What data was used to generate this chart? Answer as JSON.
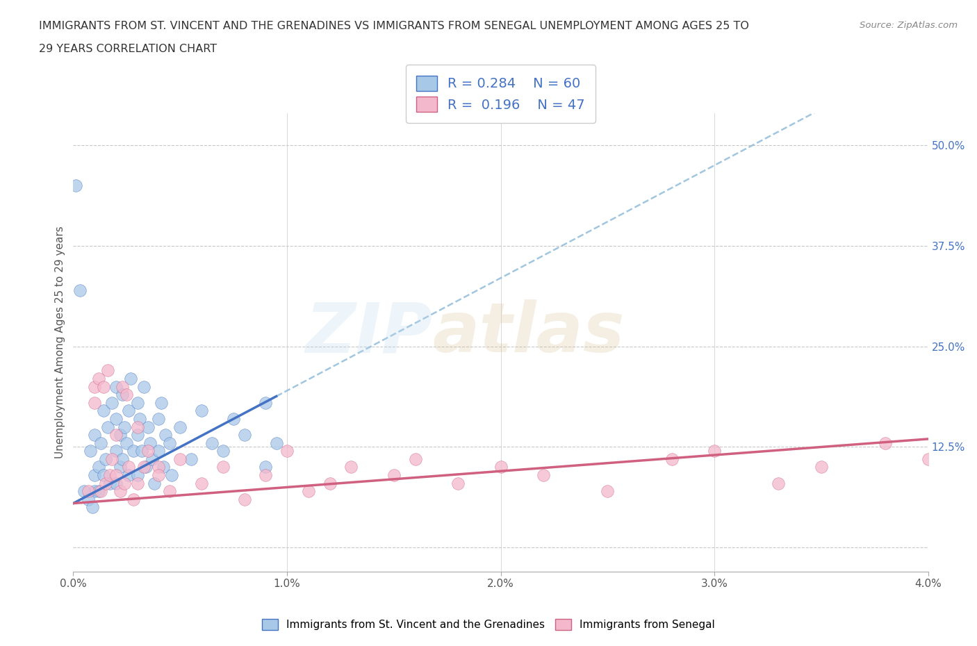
{
  "title_line1": "IMMIGRANTS FROM ST. VINCENT AND THE GRENADINES VS IMMIGRANTS FROM SENEGAL UNEMPLOYMENT AMONG AGES 25 TO",
  "title_line2": "29 YEARS CORRELATION CHART",
  "source": "Source: ZipAtlas.com",
  "ylabel": "Unemployment Among Ages 25 to 29 years",
  "legend_label_blue": "Immigrants from St. Vincent and the Grenadines",
  "legend_label_pink": "Immigrants from Senegal",
  "R_blue": 0.284,
  "N_blue": 60,
  "R_pink": 0.196,
  "N_pink": 47,
  "blue_color": "#a8c8e8",
  "pink_color": "#f4b8cc",
  "trend_blue": "#4472c4",
  "trend_pink": "#d06080",
  "trend_dashed_blue": "#8ab8d8",
  "xlim": [
    0.0,
    0.04
  ],
  "ylim": [
    -0.03,
    0.54
  ],
  "x_ticks": [
    0.0,
    0.01,
    0.02,
    0.03,
    0.04
  ],
  "x_tick_labels": [
    "0.0%",
    "1.0%",
    "2.0%",
    "3.0%",
    "4.0%"
  ],
  "y_ticks_right": [
    0.0,
    0.125,
    0.25,
    0.375,
    0.5
  ],
  "y_tick_labels_right": [
    "",
    "12.5%",
    "25.0%",
    "37.5%",
    "50.0%"
  ],
  "blue_x": [
    0.0008,
    0.001,
    0.001,
    0.001,
    0.0012,
    0.0012,
    0.0013,
    0.0014,
    0.0014,
    0.0015,
    0.0016,
    0.0017,
    0.0018,
    0.002,
    0.002,
    0.002,
    0.002,
    0.0022,
    0.0022,
    0.0023,
    0.0023,
    0.0024,
    0.0025,
    0.0026,
    0.0026,
    0.0027,
    0.0028,
    0.003,
    0.003,
    0.003,
    0.0031,
    0.0032,
    0.0033,
    0.0034,
    0.0035,
    0.0036,
    0.0037,
    0.0038,
    0.004,
    0.004,
    0.0041,
    0.0042,
    0.0043,
    0.0045,
    0.0046,
    0.005,
    0.0055,
    0.006,
    0.0065,
    0.007,
    0.0075,
    0.008,
    0.009,
    0.009,
    0.0095,
    0.0001,
    0.0003,
    0.0005,
    0.0007,
    0.0009
  ],
  "blue_y": [
    0.12,
    0.14,
    0.09,
    0.07,
    0.1,
    0.07,
    0.13,
    0.17,
    0.09,
    0.11,
    0.15,
    0.08,
    0.18,
    0.2,
    0.16,
    0.12,
    0.08,
    0.14,
    0.1,
    0.19,
    0.11,
    0.15,
    0.13,
    0.17,
    0.09,
    0.21,
    0.12,
    0.18,
    0.14,
    0.09,
    0.16,
    0.12,
    0.2,
    0.1,
    0.15,
    0.13,
    0.11,
    0.08,
    0.16,
    0.12,
    0.18,
    0.1,
    0.14,
    0.13,
    0.09,
    0.15,
    0.11,
    0.17,
    0.13,
    0.12,
    0.16,
    0.14,
    0.1,
    0.18,
    0.13,
    0.45,
    0.32,
    0.07,
    0.06,
    0.05
  ],
  "pink_x": [
    0.001,
    0.001,
    0.0012,
    0.0013,
    0.0014,
    0.0015,
    0.0016,
    0.0017,
    0.0018,
    0.002,
    0.002,
    0.0022,
    0.0023,
    0.0024,
    0.0025,
    0.0026,
    0.0028,
    0.003,
    0.003,
    0.0033,
    0.0035,
    0.004,
    0.004,
    0.0045,
    0.005,
    0.006,
    0.007,
    0.008,
    0.009,
    0.01,
    0.011,
    0.012,
    0.013,
    0.015,
    0.016,
    0.018,
    0.02,
    0.022,
    0.025,
    0.028,
    0.03,
    0.033,
    0.035,
    0.038,
    0.04,
    0.041,
    0.0007
  ],
  "pink_y": [
    0.2,
    0.18,
    0.21,
    0.07,
    0.2,
    0.08,
    0.22,
    0.09,
    0.11,
    0.14,
    0.09,
    0.07,
    0.2,
    0.08,
    0.19,
    0.1,
    0.06,
    0.15,
    0.08,
    0.1,
    0.12,
    0.1,
    0.09,
    0.07,
    0.11,
    0.08,
    0.1,
    0.06,
    0.09,
    0.12,
    0.07,
    0.08,
    0.1,
    0.09,
    0.11,
    0.08,
    0.1,
    0.09,
    0.07,
    0.11,
    0.12,
    0.08,
    0.1,
    0.13,
    0.11,
    0.12,
    0.07
  ],
  "trend_blue_x0": 0.0,
  "trend_blue_y0": 0.055,
  "trend_blue_x1": 0.01,
  "trend_blue_y1": 0.195,
  "trend_blue_x1_solid": 0.0095,
  "trend_pink_x0": 0.0,
  "trend_pink_y0": 0.055,
  "trend_pink_x1": 0.04,
  "trend_pink_y1": 0.135,
  "watermark_top": "ZIP",
  "watermark_bot": "atlas",
  "background_color": "#ffffff",
  "grid_color": "#c8c8c8"
}
